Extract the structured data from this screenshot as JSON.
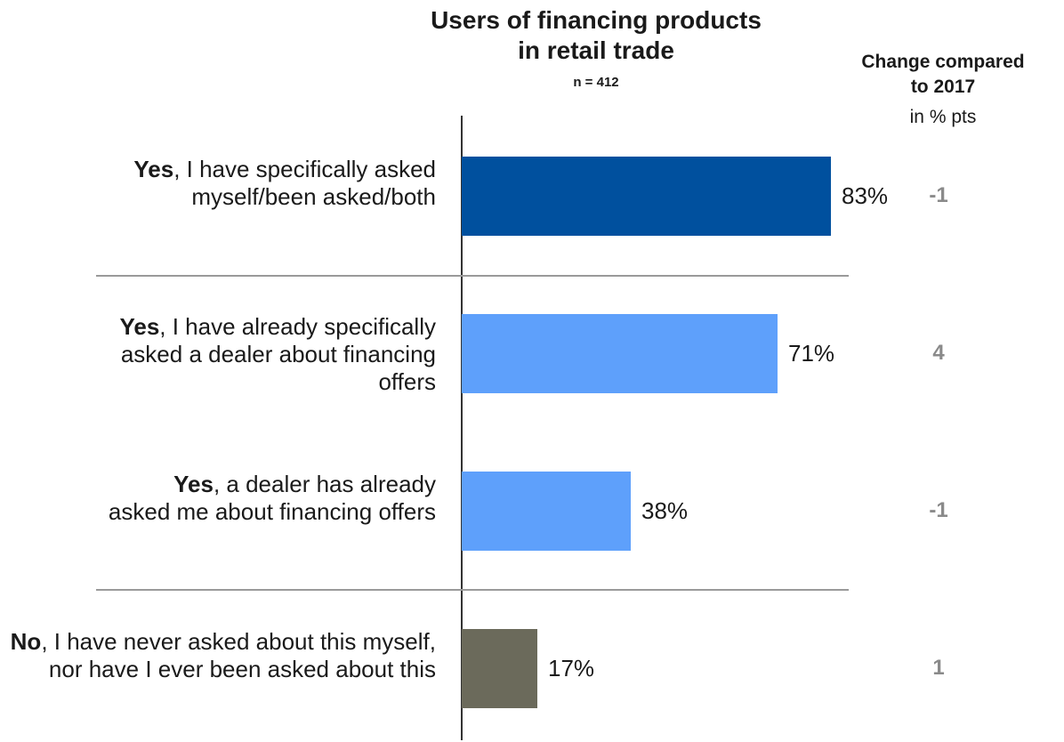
{
  "chart_data": {
    "type": "bar",
    "orientation": "horizontal",
    "title_line1": "Users of financing products",
    "title_line2": "in retail trade",
    "subtitle": "n = 412",
    "change_header_line1": "Change compared",
    "change_header_line2": "to 2017",
    "change_unit": "in % pts",
    "xlim": [
      0,
      100
    ],
    "categories": [
      {
        "bold": "Yes",
        "rest": ", I have specifically asked myself/been asked/both",
        "value": 83,
        "label": "83%",
        "change": "-1",
        "color": "#00509e"
      },
      {
        "bold": "Yes",
        "rest": ", I have already specifically asked a dealer about financing offers",
        "value": 71,
        "label": "71%",
        "change": "4",
        "color": "#5ea0fb"
      },
      {
        "bold": "Yes",
        "rest": ", a dealer has already asked me about financing offers",
        "value": 38,
        "label": "38%",
        "change": "-1",
        "color": "#5ea0fb"
      },
      {
        "bold": "No",
        "rest": ", I have never asked about this myself, nor have I ever been asked about this",
        "value": 17,
        "label": "17%",
        "change": "1",
        "color": "#6b6a5b"
      }
    ]
  }
}
